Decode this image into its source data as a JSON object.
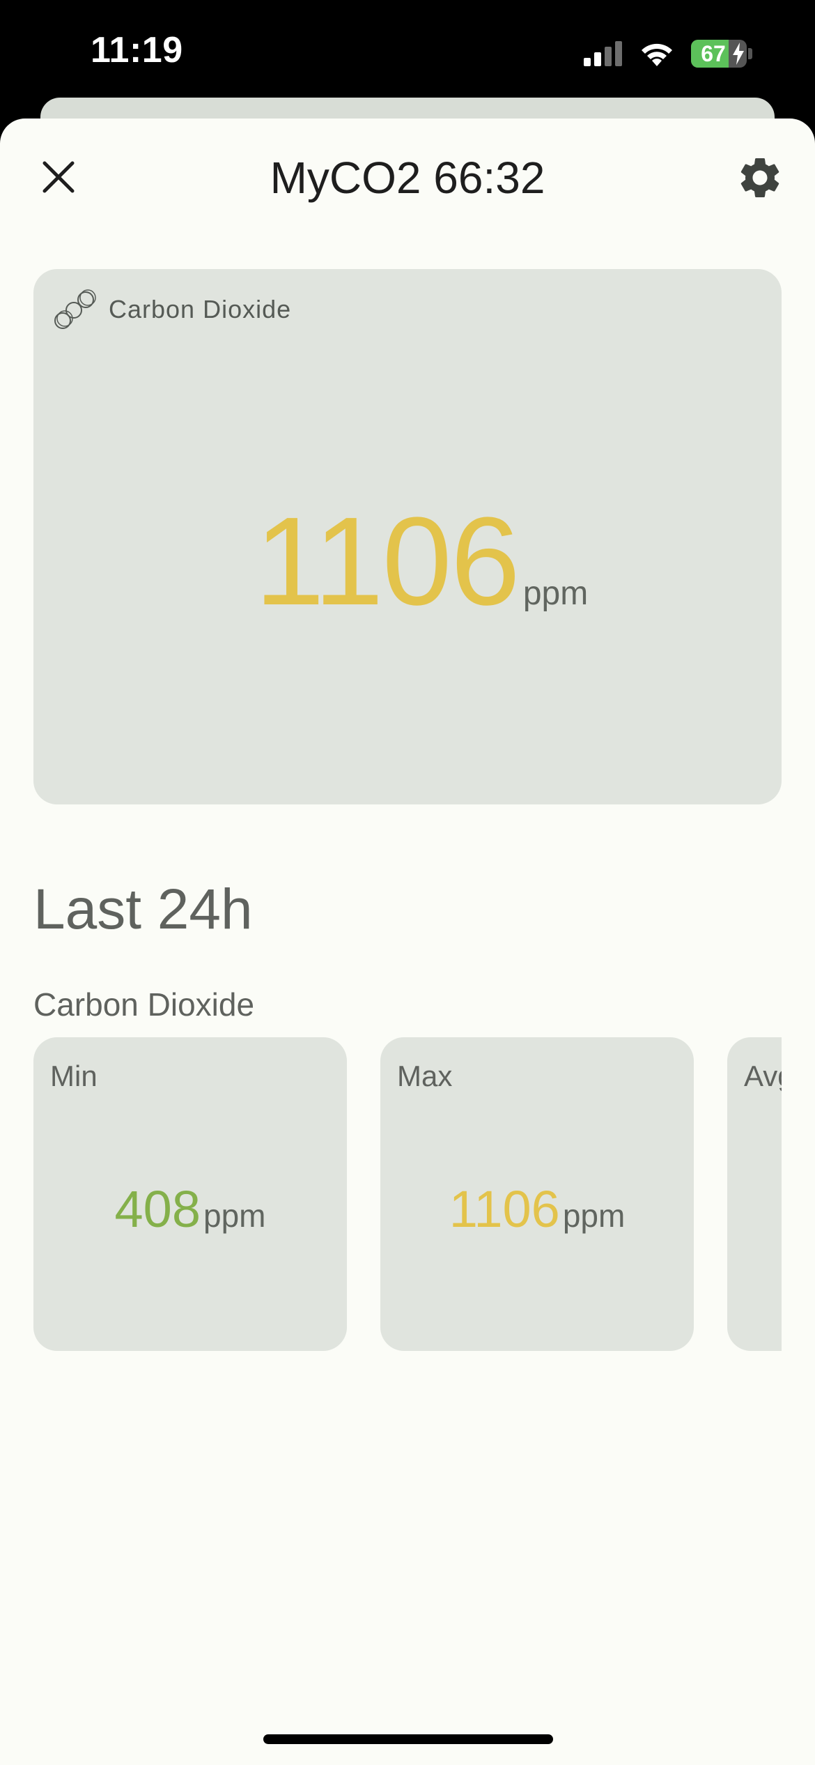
{
  "status_bar": {
    "time": "11:19",
    "battery_level": "67",
    "battery_fraction": 0.67,
    "icons": [
      "signal-icon",
      "wifi-icon",
      "battery-icon"
    ]
  },
  "header": {
    "title": "MyCO2 66:32",
    "close_icon": "close-icon",
    "settings_icon": "gear-icon"
  },
  "main_card": {
    "label": "Carbon Dioxide",
    "icon": "molecule-icon",
    "value": "1106",
    "unit": "ppm"
  },
  "history": {
    "title": "Last 24h",
    "subtitle": "Carbon Dioxide",
    "stats": [
      {
        "label": "Min",
        "value": "408",
        "unit": "ppm",
        "color": "#84b04a"
      },
      {
        "label": "Max",
        "value": "1106",
        "unit": "ppm",
        "color": "#e3c34b"
      },
      {
        "label": "Avg",
        "value": "",
        "unit": "",
        "color": "#e3c34b"
      }
    ]
  },
  "colors": {
    "background": "#fbfcf7",
    "card": "#e0e4de",
    "warning_value": "#e3c34b",
    "good_value": "#84b04a"
  }
}
